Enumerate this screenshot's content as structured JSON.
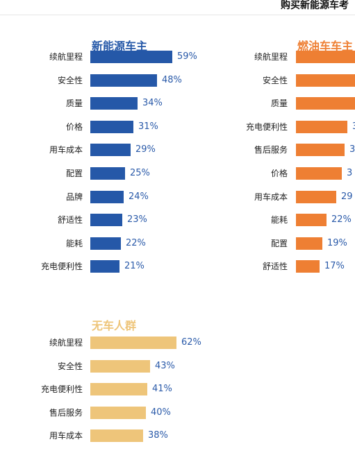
{
  "page": {
    "title": "购买新能源车考"
  },
  "colors": {
    "nev": "#2558a8",
    "fuel": "#ee7f33",
    "none": "#eec57a",
    "pct_text": "#2a5aa9"
  },
  "chart_data": [
    {
      "type": "bar",
      "orientation": "horizontal",
      "title": "新能源车主",
      "categories": [
        "续航里程",
        "安全性",
        "质量",
        "价格",
        "用车成本",
        "配置",
        "品牌",
        "舒适性",
        "能耗",
        "充电便利性"
      ],
      "values": [
        59,
        48,
        34,
        31,
        29,
        25,
        24,
        23,
        22,
        21
      ],
      "labels": [
        "59%",
        "48%",
        "34%",
        "31%",
        "29%",
        "25%",
        "24%",
        "23%",
        "22%",
        "21%"
      ]
    },
    {
      "type": "bar",
      "orientation": "horizontal",
      "title": "燃油车车主",
      "categories": [
        "续航里程",
        "安全性",
        "质量",
        "充电便利性",
        "售后服务",
        "价格",
        "用车成本",
        "能耗",
        "配置",
        "舒适性"
      ],
      "values": [
        null,
        null,
        null,
        null,
        null,
        null,
        29,
        22,
        19,
        17
      ],
      "labels": [
        "",
        "",
        "",
        "3",
        "3",
        "3",
        "29",
        "22%",
        "19%",
        "17%"
      ]
    },
    {
      "type": "bar",
      "orientation": "horizontal",
      "title": "无车人群",
      "categories": [
        "续航里程",
        "安全性",
        "充电便利性",
        "售后服务",
        "用车成本"
      ],
      "values": [
        62,
        43,
        41,
        40,
        38
      ],
      "labels": [
        "62%",
        "43%",
        "41%",
        "40%",
        "38%"
      ]
    }
  ]
}
